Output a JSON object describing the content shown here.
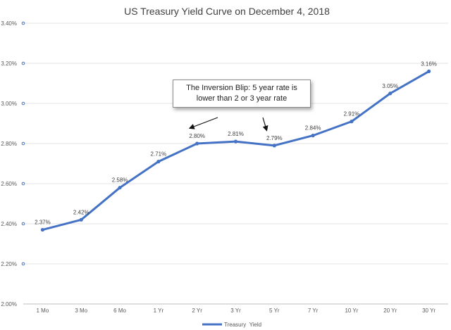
{
  "chart_data": {
    "type": "line",
    "title": "US Treasury Yield Curve on December 4, 2018",
    "categories": [
      "1 Mo",
      "3 Mo",
      "6 Mo",
      "1 Yr",
      "2 Yr",
      "3 Yr",
      "5 Yr",
      "7 Yr",
      "10 Yr",
      "20 Yr",
      "30 Yr"
    ],
    "series": [
      {
        "name": "Treasury  Yield",
        "values": [
          2.37,
          2.42,
          2.58,
          2.71,
          2.8,
          2.81,
          2.79,
          2.84,
          2.91,
          3.05,
          3.16
        ],
        "labels": [
          "2.37%",
          "2.42%",
          "2.58%",
          "2.71%",
          "2.80%",
          "2.81%",
          "2.79%",
          "2.84%",
          "2.91%",
          "3.05%",
          "3.16%"
        ],
        "color": "#4472c4"
      }
    ],
    "yticks": [
      "2.00%",
      "2.20%",
      "2.40%",
      "2.60%",
      "2.80%",
      "3.00%",
      "3.20%",
      "3.40%"
    ],
    "ylim": [
      2.0,
      3.4
    ],
    "ytick_step": 0.2,
    "grid": "horizontal",
    "legend_position": "bottom",
    "annotation": {
      "lines": [
        "The Inversion Blip: 5 year rate is",
        "lower than 2 or 3 year rate"
      ],
      "arrow_targets": [
        "2 Yr",
        "5 Yr"
      ]
    }
  }
}
